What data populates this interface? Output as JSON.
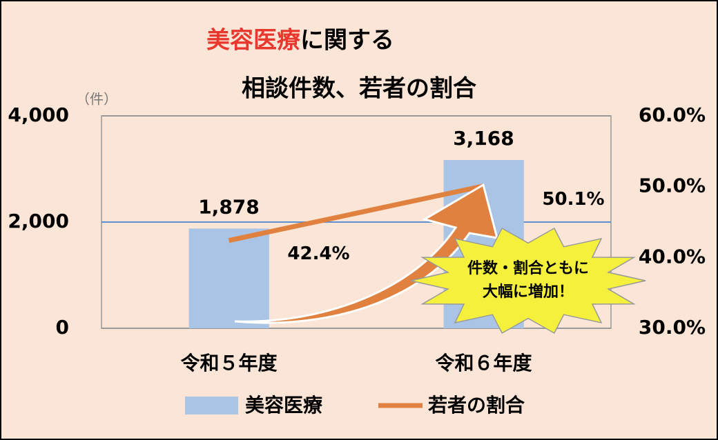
{
  "chart_data": {
    "type": "bar",
    "title": [
      "美容医療",
      "に関する",
      "相談件数、若者の割合"
    ],
    "y_unit": "（件）",
    "categories": [
      "令和５年度",
      "令和６年度"
    ],
    "series": [
      {
        "name": "美容医療",
        "type": "bar",
        "color": "#a9c4e4",
        "values": [
          1878,
          3168
        ],
        "value_labels": [
          "1,878",
          "3,168"
        ]
      },
      {
        "name": "若者の割合",
        "type": "line",
        "axis": "y2",
        "color": "#e0813f",
        "values": [
          42.4,
          50.1
        ],
        "value_labels": [
          "42.4%",
          "50.1%"
        ]
      }
    ],
    "ylim": [
      0,
      4000
    ],
    "yticks": [
      0,
      {
        "value": 2000,
        "label": "2,000"
      },
      {
        "value": 4000,
        "label": "4,000"
      }
    ],
    "y2lim": [
      30,
      60
    ],
    "y2ticks": [
      {
        "value": 30,
        "label": "30.0%"
      },
      {
        "value": 40,
        "label": "40.0%"
      },
      {
        "value": 50,
        "label": "50.0%"
      },
      {
        "value": 60,
        "label": "60.0%"
      }
    ],
    "grid": true,
    "annotation": [
      "件数・割合ともに",
      "大幅に増加！"
    ]
  }
}
